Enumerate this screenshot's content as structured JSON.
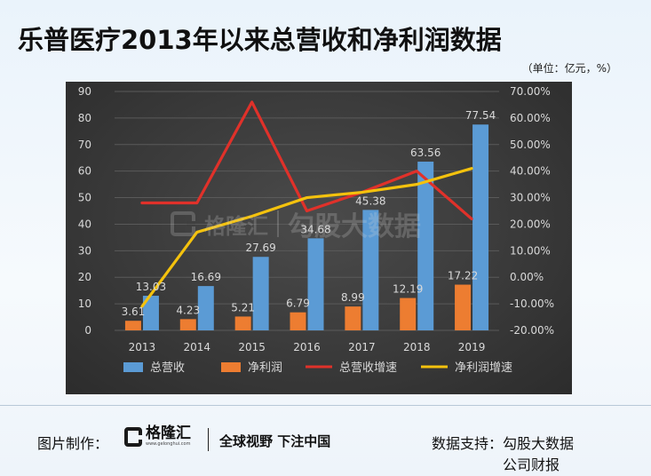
{
  "title": "乐普医疗2013年以来总营收和净利润数据",
  "unit_note": "（单位：亿元，%）",
  "watermark": {
    "brand": "格隆汇",
    "text": "勾股大数据"
  },
  "footer": {
    "made_by_label": "图片制作：",
    "brand": "格隆汇",
    "brand_url": "www.gelonghui.com",
    "slogan": "全球视野 下注中国",
    "support_label": "数据支持：",
    "support_line1": "勾股大数据",
    "support_line2": "公司财报"
  },
  "colors": {
    "revenue": "#5b9bd5",
    "net_profit": "#ed7d31",
    "revenue_growth": "#e0312a",
    "net_profit_growth": "#f4c20d",
    "panel_bg": "#3a3a3a",
    "axis_text": "#d9d9d9"
  },
  "chart_data": {
    "type": "bar",
    "categories": [
      "2013",
      "2014",
      "2015",
      "2016",
      "2017",
      "2018",
      "2019"
    ],
    "left_ylim": [
      0,
      90
    ],
    "left_yticks": [
      "0",
      "10",
      "20",
      "30",
      "40",
      "50",
      "60",
      "70",
      "80",
      "90"
    ],
    "right_ylim": [
      -20,
      70
    ],
    "right_yticks": [
      "-20.00%",
      "-10.00%",
      "0.00%",
      "10.00%",
      "20.00%",
      "30.00%",
      "40.00%",
      "50.00%",
      "60.00%",
      "70.00%"
    ],
    "series": [
      {
        "name": "总营收",
        "type": "bar",
        "axis": "left",
        "values": [
          13.03,
          16.69,
          27.69,
          34.68,
          45.38,
          63.56,
          77.54
        ],
        "labels": [
          "13.03",
          "16.69",
          "27.69",
          "34.68",
          "45.38",
          "63.56",
          "77.54"
        ]
      },
      {
        "name": "净利润",
        "type": "bar",
        "axis": "left",
        "values": [
          3.61,
          4.23,
          5.21,
          6.79,
          8.99,
          12.19,
          17.22
        ],
        "labels": [
          "3.61",
          "4.23",
          "5.21",
          "6.79",
          "8.99",
          "12.19",
          "17.22"
        ]
      },
      {
        "name": "总营收增速",
        "type": "line",
        "axis": "right",
        "values": [
          28,
          28,
          66,
          25,
          32,
          40,
          22
        ]
      },
      {
        "name": "净利润增速",
        "type": "line",
        "axis": "right",
        "values": [
          -11,
          17,
          23,
          30,
          32,
          35,
          41
        ]
      }
    ],
    "legend_position": "bottom",
    "grid": true
  }
}
